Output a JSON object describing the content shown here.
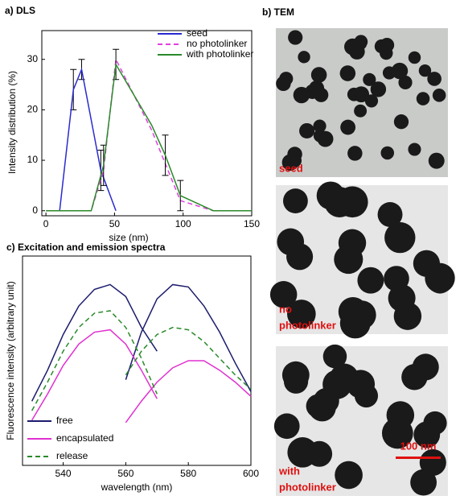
{
  "chart_data": [
    {
      "type": "line",
      "title": "a) DLS",
      "x_label": "size (nm)",
      "y_label": "Intensity distribution (%)",
      "xlim": [
        -3,
        150
      ],
      "xticks": [
        0,
        50,
        100,
        150
      ],
      "ylim": [
        -1,
        35.7
      ],
      "yticks": [
        0,
        10,
        20,
        30
      ],
      "legend": "upper right",
      "series": [
        {
          "name": "seed",
          "color": "#2a2ad0",
          "dash": false,
          "x": [
            10,
            20,
            26,
            40,
            51
          ],
          "values": [
            0,
            24,
            28,
            8,
            0
          ],
          "errors": [
            null,
            4,
            2,
            4,
            null
          ]
        },
        {
          "name": "no  photolinker",
          "color": "#e040e0",
          "dash": true,
          "x": [
            0,
            33,
            42,
            51,
            77,
            98,
            122,
            150
          ],
          "values": [
            0,
            0,
            8,
            30,
            16,
            2,
            0,
            0
          ],
          "errors": [
            null,
            null,
            null,
            null,
            null,
            null,
            null,
            null
          ]
        },
        {
          "name": "with photolinker",
          "color": "#2a8a2a",
          "dash": false,
          "x": [
            0,
            33,
            42,
            51,
            77,
            87,
            98,
            122,
            150
          ],
          "values": [
            0,
            0,
            9,
            29,
            17,
            11,
            3,
            0,
            0
          ],
          "errors": [
            null,
            null,
            4,
            3,
            null,
            4,
            3,
            null,
            null
          ]
        }
      ]
    },
    {
      "type": "spectra",
      "title": "c) Excitation and emission spectra",
      "x_label": "wavelength (nm)",
      "y_label": "Fluorescence intensity (arbitrary unit)",
      "xlim": [
        527,
        600
      ],
      "xticks": [
        540,
        560,
        580,
        600
      ],
      "ylim": [
        0.12,
        1
      ],
      "legend": "lower left",
      "x": [
        530,
        535,
        540,
        545,
        550,
        555,
        560,
        565,
        570,
        575,
        580,
        585,
        590,
        595,
        600
      ],
      "series": [
        {
          "name": "free",
          "color": "#1c1c6e",
          "dash": false,
          "excitation": [
            0.39,
            0.52,
            0.67,
            0.79,
            0.86,
            0.88,
            0.83,
            0.7,
            0.6,
            null,
            null,
            null,
            null,
            null,
            null
          ],
          "emission": [
            null,
            null,
            null,
            null,
            null,
            null,
            0.48,
            0.68,
            0.82,
            0.88,
            0.87,
            0.79,
            0.68,
            0.55,
            0.43
          ]
        },
        {
          "name": "encapsulated",
          "color": "#e030d0",
          "dash": false,
          "excitation": [
            0.31,
            0.42,
            0.54,
            0.63,
            0.68,
            0.69,
            0.63,
            0.52,
            0.4,
            null,
            null,
            null,
            null,
            null,
            null
          ],
          "emission": [
            null,
            null,
            null,
            null,
            null,
            null,
            0.3,
            0.39,
            0.47,
            0.53,
            0.56,
            0.56,
            0.52,
            0.47,
            0.41
          ]
        },
        {
          "name": "release",
          "color": "#2a8a2a",
          "dash": true,
          "excitation": [
            0.35,
            0.47,
            0.6,
            0.7,
            0.76,
            0.77,
            0.7,
            0.57,
            0.42,
            null,
            null,
            null,
            null,
            null,
            null
          ],
          "emission": [
            null,
            null,
            null,
            null,
            null,
            null,
            0.5,
            0.6,
            0.67,
            0.7,
            0.69,
            0.64,
            0.57,
            0.5,
            0.44
          ]
        }
      ]
    }
  ],
  "tem": {
    "title": "b) TEM",
    "labels": [
      [
        "seed"
      ],
      [
        "no",
        "photolinker"
      ],
      [
        "with",
        "photolinker"
      ]
    ],
    "scale_bar": "100 nm"
  }
}
